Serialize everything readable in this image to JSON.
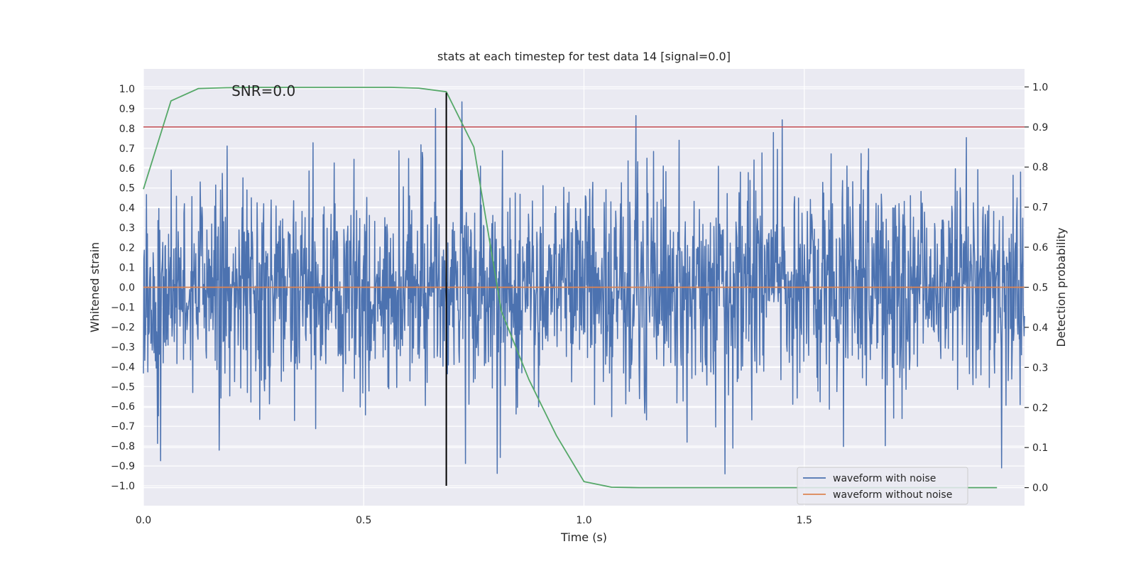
{
  "chart_data": {
    "type": "line",
    "title": "stats at each timestep for test data 14 [signal=0.0]",
    "xlabel": "Time (s)",
    "ylabel": "Whitened strain",
    "y2label": "Detection probability",
    "xlim": [
      0.0,
      2.0
    ],
    "ylim": [
      -1.1,
      1.1
    ],
    "y2lim": [
      -0.045,
      1.045
    ],
    "x_ticks": [
      0.0,
      0.5,
      1.0,
      1.5
    ],
    "x_tick_labels": [
      "0.0",
      "0.5",
      "1.0",
      "1.5"
    ],
    "y_ticks": [
      1.0,
      0.9,
      0.8,
      0.7,
      0.6,
      0.5,
      0.4,
      0.3,
      0.2,
      0.1,
      0.0,
      -0.1,
      -0.2,
      -0.3,
      -0.4,
      -0.5,
      -0.6,
      -0.7,
      -0.8,
      -0.9,
      -1.0
    ],
    "y_tick_labels": [
      "1.0",
      "0.9",
      "0.8",
      "0.7",
      "0.6",
      "0.5",
      "0.4",
      "0.3",
      "0.2",
      "0.1",
      "0.0",
      "−0.1",
      "−0.2",
      "−0.3",
      "−0.4",
      "−0.5",
      "−0.6",
      "−0.7",
      "−0.8",
      "−0.9",
      "−1.0"
    ],
    "y2_ticks": [
      1.0,
      0.9,
      0.8,
      0.7,
      0.6,
      0.5,
      0.4,
      0.3,
      0.2,
      0.1,
      0.0
    ],
    "y2_tick_labels": [
      "1.0",
      "0.9",
      "0.8",
      "0.7",
      "0.6",
      "0.5",
      "0.4",
      "0.3",
      "0.2",
      "0.1",
      "0.0"
    ],
    "grid": true,
    "legend_position": "lower-right",
    "annotation": "SNR=0.0",
    "annotation_position": {
      "x": 0.2,
      "y": 0.99
    },
    "series": [
      {
        "name": "waveform with noise",
        "axis": "left",
        "color": "#4c72b0",
        "style": "noise",
        "x_range": [
          0.0,
          2.0
        ],
        "amplitude_std": 0.27,
        "y_extremes": {
          "max": 0.97,
          "min": -1.0
        }
      },
      {
        "name": "waveform without noise",
        "axis": "left",
        "color": "#dd8452",
        "x": [
          0.0,
          2.0
        ],
        "y": [
          0.0,
          0.0
        ]
      },
      {
        "axis": "right",
        "color": "#55a868",
        "x": [
          0.0,
          0.0625,
          0.125,
          0.1875,
          0.25,
          0.3125,
          0.375,
          0.4375,
          0.5,
          0.5625,
          0.625,
          0.6875,
          0.75,
          0.8125,
          0.875,
          0.9375,
          1.0,
          1.0625,
          1.125,
          1.1875,
          1.25,
          1.3125,
          1.375,
          1.4375,
          1.5,
          1.5625,
          1.625,
          1.6875,
          1.75,
          1.8125,
          1.875,
          1.9375
        ],
        "y": [
          0.745,
          0.965,
          0.996,
          0.998,
          0.999,
          0.999,
          0.999,
          0.999,
          0.999,
          0.999,
          0.997,
          0.988,
          0.85,
          0.44,
          0.27,
          0.13,
          0.015,
          0.001,
          0.0,
          0.0,
          0.0,
          0.0,
          0.0,
          0.0,
          0.0,
          0.0,
          0.0,
          0.0,
          0.0,
          0.0,
          0.0,
          0.0
        ]
      },
      {
        "axis": "right",
        "color": "#c44e52",
        "style": "hline",
        "y": 0.9
      }
    ],
    "vline": {
      "x": 0.6875,
      "y_range": [
        -1.0,
        0.98
      ],
      "color": "#000000"
    }
  }
}
